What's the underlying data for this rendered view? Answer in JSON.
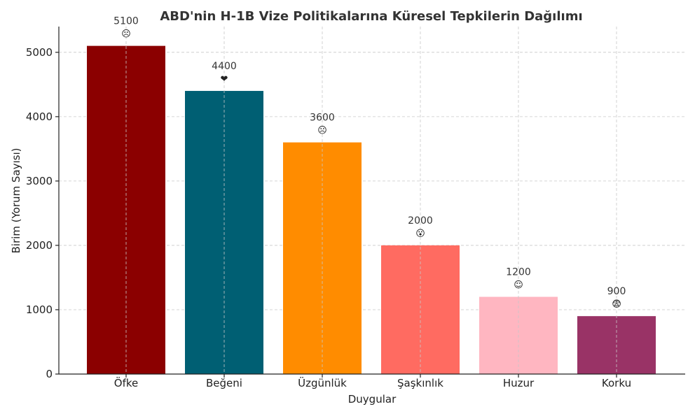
{
  "chart_data": {
    "type": "bar",
    "title": "ABD'nin H-1B Vize Politikalarına Küresel Tepkilerin Dağılımı",
    "xlabel": "Duygular",
    "ylabel": "Birim (Yorum Sayısı)",
    "categories": [
      "Öfke",
      "Beğeni",
      "Üzgünlük",
      "Şaşkınlık",
      "Huzur",
      "Korku"
    ],
    "values": [
      5100,
      4400,
      3600,
      2000,
      1200,
      900
    ],
    "value_labels": [
      "5100",
      "4400",
      "3600",
      "2000",
      "1200",
      "900"
    ],
    "emojis": [
      "☹",
      "❤",
      "☹",
      "😮",
      "☺",
      "😨"
    ],
    "colors": [
      "#8b0000",
      "#005f73",
      "#ff8c00",
      "#ff6b61",
      "#ffb6c1",
      "#993366"
    ],
    "ylim": [
      0,
      5400
    ],
    "yticks": [
      0,
      1000,
      2000,
      3000,
      4000,
      5000
    ],
    "grid": true
  }
}
